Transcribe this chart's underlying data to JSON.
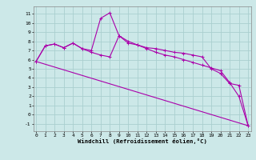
{
  "xlabel": "Windchill (Refroidissement éolien,°C)",
  "background_color": "#cce8e8",
  "line_color": "#aa00aa",
  "grid_color": "#aacfcf",
  "line1_x": [
    0,
    1,
    2,
    3,
    4,
    5,
    6,
    7,
    8,
    9,
    10,
    11,
    12,
    13,
    14,
    15,
    16,
    17,
    18,
    19,
    20,
    21,
    22,
    23
  ],
  "line1_y": [
    5.8,
    7.5,
    7.7,
    7.3,
    7.8,
    7.2,
    6.8,
    6.5,
    6.3,
    8.6,
    7.8,
    7.6,
    7.3,
    7.2,
    7.0,
    6.8,
    6.7,
    6.5,
    6.3,
    5.0,
    4.5,
    3.4,
    3.2,
    -1.2
  ],
  "line2_x": [
    0,
    1,
    2,
    3,
    4,
    5,
    6,
    7,
    8,
    9,
    10,
    11,
    12,
    13,
    14,
    15,
    16,
    17,
    18,
    19,
    20,
    21,
    22,
    23
  ],
  "line2_y": [
    5.8,
    7.5,
    7.7,
    7.3,
    7.8,
    7.2,
    7.0,
    10.5,
    11.1,
    8.6,
    8.0,
    7.6,
    7.2,
    6.8,
    6.5,
    6.3,
    6.0,
    5.7,
    5.4,
    5.1,
    4.8,
    3.5,
    2.0,
    -1.2
  ],
  "line3_x": [
    0,
    23
  ],
  "line3_y": [
    5.8,
    -1.2
  ],
  "ylim": [
    -1.8,
    11.8
  ],
  "xlim": [
    -0.3,
    23.3
  ],
  "yticks": [
    -1,
    0,
    1,
    2,
    3,
    4,
    5,
    6,
    7,
    8,
    9,
    10,
    11
  ],
  "xticks": [
    0,
    1,
    2,
    3,
    4,
    5,
    6,
    7,
    8,
    9,
    10,
    11,
    12,
    13,
    14,
    15,
    16,
    17,
    18,
    19,
    20,
    21,
    22,
    23
  ]
}
